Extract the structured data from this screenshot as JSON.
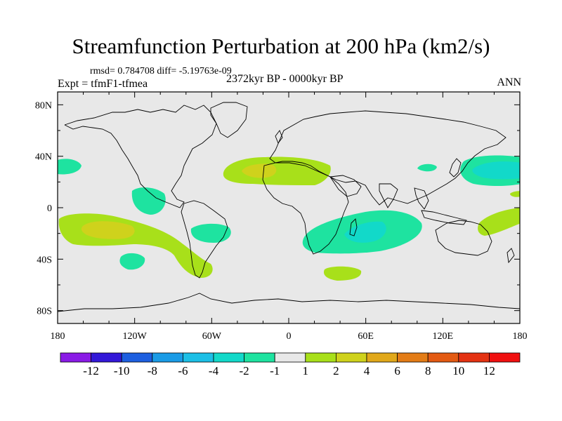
{
  "header": {
    "title": "Streamfunction Perturbation at 200 hPa (km2/s)",
    "stats": "rmsd= 0.784708 diff= -5.19763e-09",
    "experiment": "Expt = tfmF1-tfmea",
    "period": "2372kyr BP - 0000kyr BP",
    "season": "ANN"
  },
  "axes": {
    "x_ticks": [
      "180",
      "120W",
      "60W",
      "0",
      "60E",
      "120E",
      "180"
    ],
    "x_values": [
      -180,
      -120,
      -60,
      0,
      60,
      120,
      180
    ],
    "y_ticks": [
      "80N",
      "40N",
      "0",
      "40S",
      "80S"
    ],
    "y_values": [
      80,
      40,
      0,
      -40,
      -80
    ],
    "lon_range": [
      -180,
      180
    ],
    "lat_range": [
      -90,
      90
    ]
  },
  "colorbar": {
    "labels": [
      "-12",
      "-10",
      "-8",
      "-6",
      "-4",
      "-2",
      "-1",
      "1",
      "2",
      "4",
      "6",
      "8",
      "10",
      "12"
    ],
    "colors": [
      "#8a1be6",
      "#3318d8",
      "#1d5fe0",
      "#1a9be6",
      "#1cbfe6",
      "#12d9c9",
      "#1ee3a0",
      "#e8e8e8",
      "#a8e01a",
      "#cfd21c",
      "#e1a81a",
      "#e37c16",
      "#e35a12",
      "#e43212",
      "#f01010"
    ]
  },
  "colors": {
    "neutral": "#e8e8e8",
    "coast": "#000000"
  }
}
